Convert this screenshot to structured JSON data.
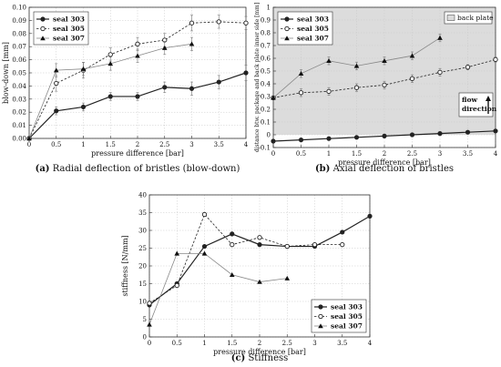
{
  "chart_data": [
    {
      "id": "a",
      "type": "line",
      "caption_letter": "(a)",
      "caption_text": "Radial deflection of bristles (blow-down)",
      "xlabel": "pressure difference [bar]",
      "ylabel": "blow-down [mm]",
      "xlim": [
        0,
        4
      ],
      "ylim": [
        0,
        0.1
      ],
      "xticks": [
        0,
        0.5,
        1,
        1.5,
        2,
        2.5,
        3,
        3.5,
        4
      ],
      "xtick_labels": [
        "0",
        "0.5",
        "1",
        "1.5",
        "2",
        "2.5",
        "3",
        "3.5",
        "4"
      ],
      "yticks": [
        0,
        0.01,
        0.02,
        0.03,
        0.04,
        0.05,
        0.06,
        0.07,
        0.08,
        0.09,
        0.1
      ],
      "ytick_labels": [
        "0.00",
        "0.01",
        "0.02",
        "0.03",
        "0.04",
        "0.05",
        "0.06",
        "0.07",
        "0.08",
        "0.09",
        "0.10"
      ],
      "grid": true,
      "legend": "top-left",
      "series": [
        {
          "name": "seal 303",
          "style": "solid",
          "marker": "circle-filled",
          "color": "#222222",
          "x": [
            0,
            0.5,
            1,
            1.5,
            2,
            2.5,
            3,
            3.5,
            4
          ],
          "y": [
            0,
            0.021,
            0.024,
            0.032,
            0.032,
            0.039,
            0.038,
            0.043,
            0.05
          ],
          "err": [
            0,
            0.003,
            0.003,
            0.003,
            0.003,
            0.004,
            0.005,
            0.005,
            0.006
          ]
        },
        {
          "name": "seal 305",
          "style": "dashed",
          "marker": "circle-open",
          "color": "#222222",
          "x": [
            0,
            0.5,
            1,
            1.5,
            2,
            2.5,
            3,
            3.5,
            4
          ],
          "y": [
            0,
            0.042,
            0.052,
            0.064,
            0.072,
            0.075,
            0.088,
            0.089,
            0.088
          ],
          "err": [
            0,
            0.006,
            0.006,
            0.005,
            0.005,
            0.005,
            0.006,
            0.005,
            0.005
          ]
        },
        {
          "name": "seal 307",
          "style": "solid-light",
          "marker": "triangle-filled",
          "color": "#888888",
          "x": [
            0,
            0.5,
            1,
            1.5,
            2,
            2.5,
            3
          ],
          "y": [
            0,
            0.052,
            0.053,
            0.057,
            0.063,
            0.069,
            0.072
          ],
          "err": [
            0,
            0.005,
            0.005,
            0.005,
            0.005,
            0.005,
            0.005
          ]
        }
      ]
    },
    {
      "id": "b",
      "type": "line",
      "caption_letter": "(b)",
      "caption_text": "Axial deflection of bristles",
      "xlabel": "pressure difference [bar]",
      "ylabel": "distance btw. package and back plate inner side [mm]",
      "xlim": [
        0,
        4
      ],
      "ylim": [
        -0.1,
        1
      ],
      "xticks": [
        0,
        0.5,
        1,
        1.5,
        2,
        2.5,
        3,
        3.5,
        4
      ],
      "xtick_labels": [
        "0",
        "0.5",
        "1",
        "1.5",
        "2",
        "2.5",
        "3",
        "3.5",
        "4"
      ],
      "yticks": [
        -0.1,
        0,
        0.1,
        0.2,
        0.3,
        0.4,
        0.5,
        0.6,
        0.7,
        0.8,
        0.9,
        1
      ],
      "ytick_labels": [
        "-0.1",
        "0",
        "0.1",
        "0.2",
        "0.3",
        "0.4",
        "0.5",
        "0.6",
        "0.7",
        "0.8",
        "0.9",
        "1"
      ],
      "grid": true,
      "legend": "top-left",
      "shaded_region": {
        "label": "back plate",
        "y_from": 0,
        "y_to": 1,
        "color": "#dcdcdc"
      },
      "annotation": {
        "text_line1": "flow",
        "text_line2": "direction"
      },
      "series": [
        {
          "name": "seal 303",
          "style": "solid",
          "marker": "circle-filled",
          "color": "#222222",
          "x": [
            0,
            0.5,
            1,
            1.5,
            2,
            2.5,
            3,
            3.5,
            4
          ],
          "y": [
            -0.05,
            -0.04,
            -0.03,
            -0.02,
            -0.01,
            0,
            0.01,
            0.02,
            0.03
          ],
          "err": [
            0,
            0.01,
            0.01,
            0.01,
            0.01,
            0.01,
            0.01,
            0.01,
            0.01
          ]
        },
        {
          "name": "seal 305",
          "style": "dashed",
          "marker": "circle-open",
          "color": "#222222",
          "x": [
            0,
            0.5,
            1,
            1.5,
            2,
            2.5,
            3,
            3.5,
            4
          ],
          "y": [
            0.29,
            0.33,
            0.34,
            0.37,
            0.39,
            0.44,
            0.49,
            0.53,
            0.59
          ],
          "err": [
            0,
            0.03,
            0.03,
            0.03,
            0.03,
            0.03,
            0.03,
            0.02,
            0.02
          ]
        },
        {
          "name": "seal 307",
          "style": "solid-light",
          "marker": "triangle-filled",
          "color": "#888888",
          "x": [
            0,
            0.5,
            1,
            1.5,
            2,
            2.5,
            3
          ],
          "y": [
            0.29,
            0.48,
            0.58,
            0.54,
            0.58,
            0.62,
            0.76
          ],
          "err": [
            0,
            0.03,
            0.03,
            0.03,
            0.03,
            0.03,
            0.03
          ]
        }
      ]
    },
    {
      "id": "c",
      "type": "line",
      "caption_letter": "(c)",
      "caption_text": "Stiffness",
      "xlabel": "pressure difference [bar]",
      "ylabel": "stiffness [N/mm]",
      "xlim": [
        0,
        4
      ],
      "ylim": [
        0,
        40
      ],
      "xticks": [
        0,
        0.5,
        1,
        1.5,
        2,
        2.5,
        3,
        3.5,
        4
      ],
      "xtick_labels": [
        "0",
        "0.5",
        "1",
        "1.5",
        "2",
        "2.5",
        "3",
        "3.5",
        "4"
      ],
      "yticks": [
        0,
        5,
        10,
        15,
        20,
        25,
        30,
        35,
        40
      ],
      "ytick_labels": [
        "0",
        "5",
        "10",
        "15",
        "20",
        "25",
        "30",
        "35",
        "40"
      ],
      "grid": true,
      "legend": "bottom-right",
      "series": [
        {
          "name": "seal 303",
          "style": "solid",
          "marker": "circle-filled",
          "color": "#222222",
          "x": [
            0,
            0.5,
            1,
            1.5,
            2,
            2.5,
            3,
            3.5,
            4
          ],
          "y": [
            9,
            15,
            25.5,
            29,
            26,
            25.5,
            25.5,
            29.5,
            34
          ],
          "err": [
            0,
            0,
            0,
            0,
            0,
            0,
            0,
            0,
            0
          ]
        },
        {
          "name": "seal 305",
          "style": "dashed",
          "marker": "circle-open",
          "color": "#222222",
          "x": [
            0,
            0.5,
            1,
            1.5,
            2,
            2.5,
            3,
            3.5
          ],
          "y": [
            9.5,
            14.5,
            34.5,
            26,
            28,
            25.5,
            26,
            26
          ],
          "err": [
            0,
            0,
            0,
            0,
            0,
            0,
            0,
            0
          ]
        },
        {
          "name": "seal 307",
          "style": "solid-light",
          "marker": "triangle-filled",
          "color": "#888888",
          "x": [
            0,
            0.5,
            1,
            1.5,
            2,
            2.5
          ],
          "y": [
            3.5,
            23.5,
            23.5,
            17.5,
            15.5,
            16.5
          ],
          "err": [
            0,
            0,
            0,
            0,
            0,
            0
          ]
        }
      ]
    }
  ]
}
